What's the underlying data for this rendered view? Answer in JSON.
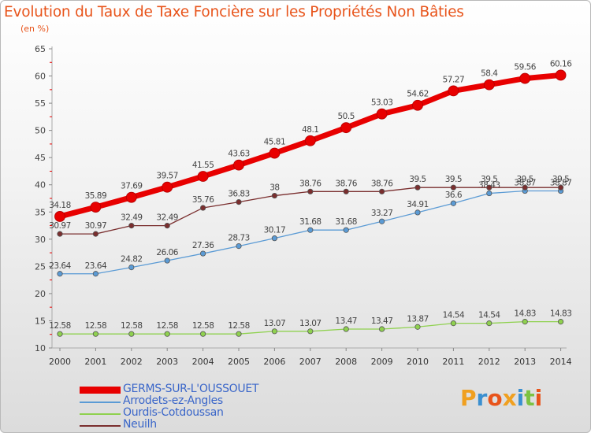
{
  "title": "Evolution du Taux de Taxe Foncière sur les Propriétés Non Bâties",
  "unit": "(en %)",
  "logo": {
    "text": "Proxiti",
    "letters": [
      {
        "ch": "P",
        "color": "#f0a020"
      },
      {
        "ch": "r",
        "color": "#3a8fd0"
      },
      {
        "ch": "o",
        "color": "#e8541b"
      },
      {
        "ch": "x",
        "color": "#f0a020"
      },
      {
        "ch": "i",
        "color": "#3a8fd0"
      },
      {
        "ch": "t",
        "color": "#7cc242"
      },
      {
        "ch": "i",
        "color": "#e8541b"
      }
    ]
  },
  "chart_data": {
    "type": "line",
    "x": [
      "2000",
      "2001",
      "2002",
      "2003",
      "2004",
      "2005",
      "2006",
      "2007",
      "2008",
      "2009",
      "2010",
      "2011",
      "2012",
      "2013",
      "2014"
    ],
    "ylim": [
      10,
      65
    ],
    "yticks": [
      10,
      15,
      20,
      25,
      30,
      35,
      40,
      45,
      50,
      55,
      60,
      65
    ],
    "grid": false,
    "series": [
      {
        "name": "GERMS-SUR-L'OUSSOUET",
        "color": "#e80000",
        "thick": true,
        "values": [
          34.18,
          35.89,
          37.69,
          39.57,
          41.55,
          43.63,
          45.81,
          48.1,
          50.5,
          53.03,
          54.62,
          57.27,
          58.4,
          59.56,
          60.16
        ],
        "labels": [
          "34.18",
          "35.89",
          "37.69",
          "39.57",
          "41.55",
          "43.63",
          "45.81",
          "48.1",
          "50.5",
          "53.03",
          "54.62",
          "57.27",
          "58.4",
          "59.56",
          "60.16"
        ]
      },
      {
        "name": "Arrodets-ez-Angles",
        "color": "#5b9bd5",
        "values": [
          23.64,
          23.64,
          24.82,
          26.06,
          27.36,
          28.73,
          30.17,
          31.68,
          31.68,
          33.27,
          34.91,
          36.6,
          38.43,
          38.87,
          38.87
        ],
        "labels": [
          "23.64",
          "23.64",
          "24.82",
          "26.06",
          "27.36",
          "28.73",
          "30.17",
          "31.68",
          "31.68",
          "33.27",
          "34.91",
          "36.6",
          "38.43",
          "38.87",
          "38.87"
        ]
      },
      {
        "name": "Ourdis-Cotdoussan",
        "color": "#8fd14f",
        "values": [
          12.58,
          12.58,
          12.58,
          12.58,
          12.58,
          12.58,
          13.07,
          13.07,
          13.47,
          13.47,
          13.87,
          14.54,
          14.54,
          14.83,
          14.83
        ],
        "labels": [
          "12.58",
          "12.58",
          "12.58",
          "12.58",
          "12.58",
          "12.58",
          "13.07",
          "13.07",
          "13.47",
          "13.47",
          "13.87",
          "14.54",
          "14.54",
          "14.83",
          "14.83"
        ]
      },
      {
        "name": "Neuilh",
        "color": "#7a2e2e",
        "values": [
          30.97,
          30.97,
          32.49,
          32.49,
          35.76,
          36.83,
          38,
          38.76,
          38.76,
          38.76,
          39.5,
          39.5,
          39.5,
          39.5,
          39.5
        ],
        "labels": [
          "30.97",
          "30.97",
          "32.49",
          "32.49",
          "35.76",
          "36.83",
          "38",
          "38.76",
          "38.76",
          "38.76",
          "39.5",
          "39.5",
          "39.5",
          "39.5",
          "39.5"
        ]
      }
    ]
  }
}
